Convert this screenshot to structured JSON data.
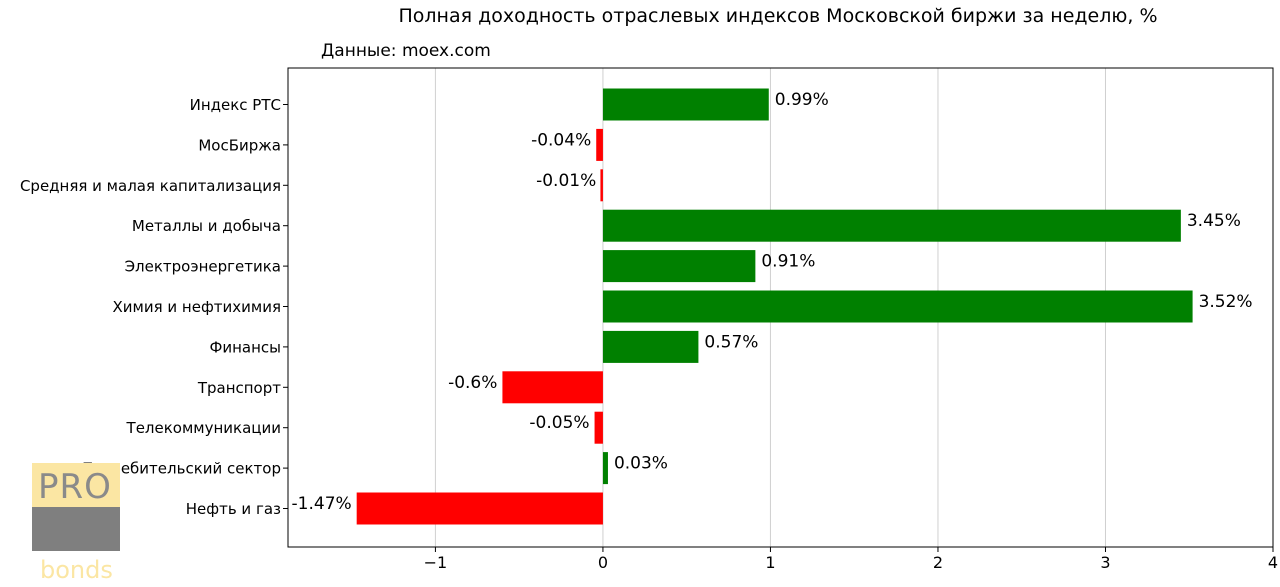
{
  "chart_data": {
    "type": "bar",
    "orientation": "horizontal",
    "title": "Полная доходность отраслевых индексов Московской биржи за неделю, %",
    "subtitle": "Данные: moex.com",
    "categories": [
      "Индекс РТС",
      "МосБиржа",
      "Средняя и малая капитализация",
      "Металлы и добыча",
      "Электроэнергетика",
      "Химия и нефтихимия",
      "Финансы",
      "Транспорт",
      "Телекоммуникации",
      "Потребительский сектор",
      "Нефть и газ"
    ],
    "values": [
      0.99,
      -0.04,
      -0.01,
      3.45,
      0.91,
      3.52,
      0.57,
      -0.6,
      -0.05,
      0.03,
      -1.47
    ],
    "value_labels": [
      "0.99%",
      "-0.04%",
      "-0.01%",
      "3.45%",
      "0.91%",
      "3.52%",
      "0.57%",
      "-0.6%",
      "-0.05%",
      "0.03%",
      "-1.47%"
    ],
    "xlim": [
      -1.88,
      4.0
    ],
    "xticks": [
      -1,
      0,
      1,
      2,
      3,
      4
    ],
    "xtick_labels": [
      "−1",
      "0",
      "1",
      "2",
      "3",
      "4"
    ],
    "grid": "vertical",
    "colors": {
      "positive": "#008000",
      "negative": "#ff0000",
      "grid": "#d0d0d0",
      "axis": "#000000",
      "text": "#000000"
    }
  },
  "logo": {
    "top_text": "PRO",
    "bottom_text": "bonds"
  }
}
